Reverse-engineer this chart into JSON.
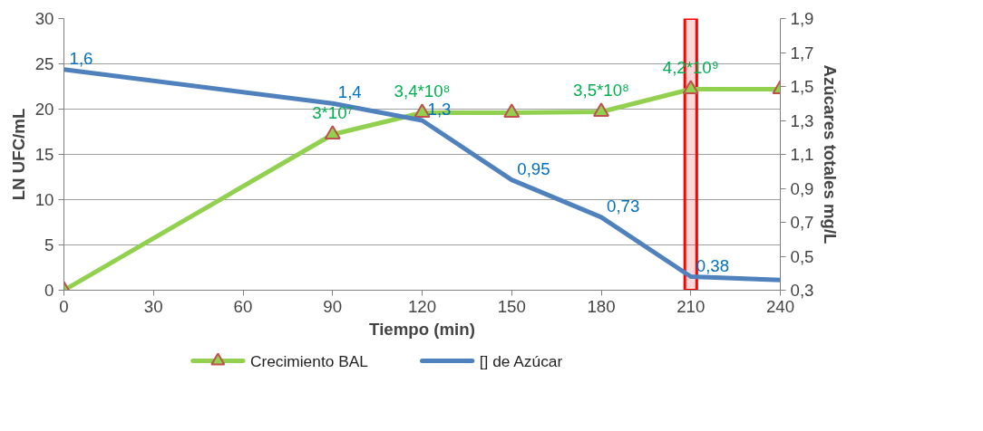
{
  "chart_data": {
    "type": "line",
    "xlabel": "Tiempo (min)",
    "ylabel": "LN UFC/mL",
    "y2label": "Azúcares totales mg/L",
    "series": [
      {
        "name": "Crecimiento  BAL",
        "color": "#92d050",
        "marker": "triangle",
        "x": [
          0,
          90,
          120,
          150,
          180,
          210,
          240
        ],
        "values": [
          0,
          17.2,
          19.6,
          19.6,
          19.7,
          22.2,
          22.2
        ]
      },
      {
        "name": "[]  de Azúcar",
        "color": "#4f81bd",
        "marker": "none",
        "axis": "y2",
        "x": [
          0,
          90,
          120,
          150,
          180,
          210,
          240
        ],
        "values": [
          1.6,
          1.4,
          1.3,
          0.95,
          0.73,
          0.38,
          0.36
        ],
        "value_labels": [
          "1,6",
          "1,4",
          "1,3",
          "0,95",
          "0,73",
          "0,38",
          null
        ]
      }
    ],
    "xlim": [
      0,
      240
    ],
    "xticks": [
      0,
      30,
      60,
      90,
      120,
      150,
      180,
      210,
      240
    ],
    "ylim": [
      0,
      30
    ],
    "yticks": [
      0,
      5,
      10,
      15,
      20,
      25,
      30
    ],
    "y2lim": [
      0.3,
      1.9
    ],
    "y2ticks": [
      {
        "value": 0.3,
        "label": "0,3"
      },
      {
        "value": 0.5,
        "label": "0,5"
      },
      {
        "value": 0.7,
        "label": "0,7"
      },
      {
        "value": 0.9,
        "label": "0,9"
      },
      {
        "value": 1.1,
        "label": "1,1"
      },
      {
        "value": 1.3,
        "label": "1,3"
      },
      {
        "value": 1.5,
        "label": "1,5"
      },
      {
        "value": 1.7,
        "label": "1,7"
      },
      {
        "value": 1.9,
        "label": "1,9"
      }
    ],
    "bands": [
      {
        "axis": "x",
        "from": 208,
        "to": 212,
        "color": "#ff0000"
      }
    ],
    "annotations": [
      {
        "text": "3*10⁷",
        "x": 90,
        "y": 17.2
      },
      {
        "text": "3,4*10⁸",
        "x": 120,
        "y": 19.6
      },
      {
        "text": "3,5*10⁸",
        "x": 180,
        "y": 19.7
      },
      {
        "text": "4,2*10⁹",
        "x": 210,
        "y": 22.2
      }
    ],
    "grid": "y",
    "legend": "bottom"
  }
}
